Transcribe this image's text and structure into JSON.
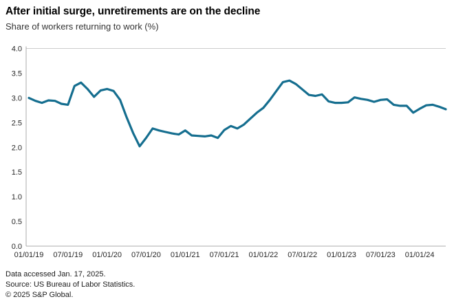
{
  "header": {
    "title": "After initial surge, unretirements are on the decline",
    "subtitle": "Share of workers returning to work (%)"
  },
  "chart_data": {
    "type": "line",
    "title": "After initial surge, unretirements are on the decline",
    "subtitle": "Share of workers returning to work (%)",
    "ylabel": "Share of workers returning to work (%)",
    "xlabel": "",
    "ylim": [
      0.0,
      4.0
    ],
    "y_tick_labels": [
      "0.0",
      "0.5",
      "1.0",
      "1.5",
      "2.0",
      "2.5",
      "3.0",
      "3.5",
      "4.0"
    ],
    "y_tick_values": [
      0.0,
      0.5,
      1.0,
      1.5,
      2.0,
      2.5,
      3.0,
      3.5,
      4.0
    ],
    "x_tick_labels": [
      "01/01/19",
      "07/01/19",
      "01/01/20",
      "07/01/20",
      "01/01/21",
      "07/01/21",
      "01/01/22",
      "07/01/22",
      "01/01/23",
      "07/01/23",
      "01/01/24"
    ],
    "x_tick_month_index": [
      0,
      6,
      12,
      18,
      24,
      30,
      36,
      42,
      48,
      54,
      60
    ],
    "grid": "top-border-only",
    "legend": "none",
    "line_color": "#156e8f",
    "axis_color": "#ababab",
    "grid_color": "#cccccc",
    "series": [
      {
        "name": "Share of workers returning to work (%)",
        "start": "2019-01",
        "frequency": "monthly",
        "values": [
          3.0,
          2.94,
          2.9,
          2.95,
          2.94,
          2.88,
          2.86,
          3.24,
          3.31,
          3.18,
          3.02,
          3.15,
          3.18,
          3.14,
          2.96,
          2.61,
          2.29,
          2.02,
          2.19,
          2.38,
          2.34,
          2.31,
          2.28,
          2.26,
          2.34,
          2.24,
          2.23,
          2.22,
          2.24,
          2.19,
          2.35,
          2.43,
          2.38,
          2.46,
          2.58,
          2.7,
          2.8,
          2.96,
          3.14,
          3.32,
          3.35,
          3.28,
          3.17,
          3.06,
          3.04,
          3.07,
          2.93,
          2.9,
          2.9,
          2.91,
          3.01,
          2.98,
          2.96,
          2.92,
          2.96,
          2.97,
          2.86,
          2.84,
          2.84,
          2.7,
          2.78,
          2.85,
          2.86,
          2.82,
          2.77
        ]
      }
    ]
  },
  "footer": {
    "data_accessed": "Data accessed Jan. 17, 2025.",
    "source": "Source: US Bureau of Labor Statistics.",
    "copyright": "© 2025 S&P Global."
  }
}
